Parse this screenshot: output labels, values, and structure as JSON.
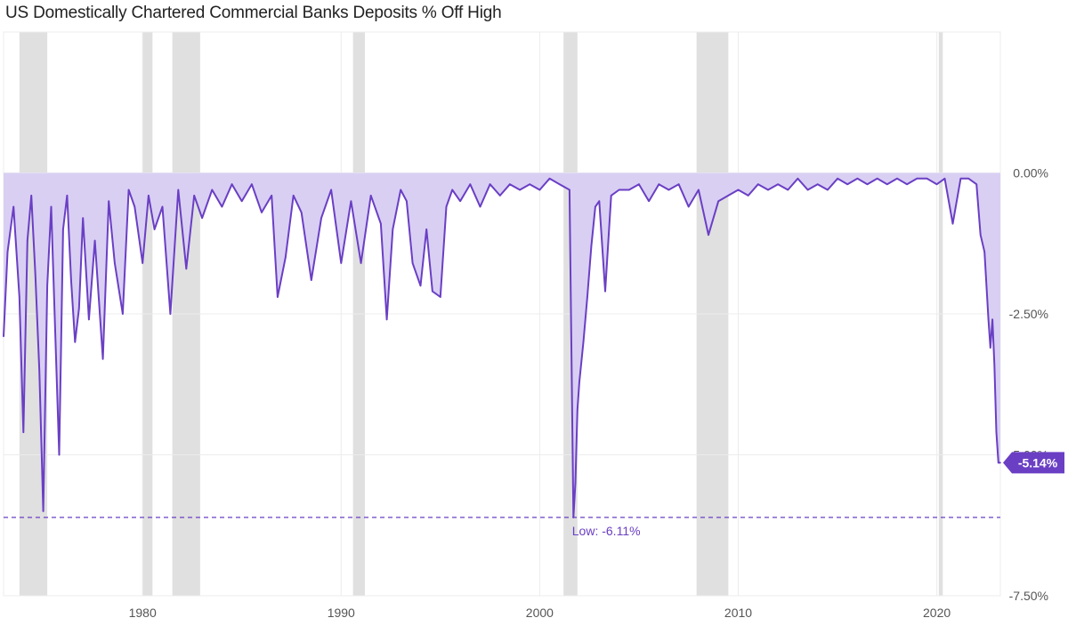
{
  "chart_data": {
    "type": "area",
    "title": "US Domestically Chartered Commercial Banks Deposits % Off High",
    "xlabel": "",
    "ylabel": "",
    "xlim": [
      1973,
      2023.2
    ],
    "ylim": [
      -7.5,
      2.5
    ],
    "y_ticks": [
      0,
      -2.5,
      -5,
      -7.5
    ],
    "y_tick_labels": [
      "0.00%",
      "-2.50%",
      "-5.00%",
      "-7.50%"
    ],
    "x_ticks": [
      1980,
      1990,
      2000,
      2010,
      2020
    ],
    "x_tick_labels": [
      "1980",
      "1990",
      "2000",
      "2010",
      "2020"
    ],
    "grid": true,
    "axis_side": "right",
    "colors": {
      "line": "#6a3fc4",
      "fill": "#d9cff3",
      "recession": "#e0e0e0",
      "grid": "#ececec",
      "reference": "#6a3fc4"
    },
    "recessions": [
      [
        1973.8,
        1975.2
      ],
      [
        1980.0,
        1980.5
      ],
      [
        1981.5,
        1982.9
      ],
      [
        1990.6,
        1991.2
      ],
      [
        2001.2,
        2001.9
      ],
      [
        2007.9,
        2009.5
      ],
      [
        2020.1,
        2020.3
      ]
    ],
    "reference_line": {
      "value": -6.11,
      "label": "Low: -6.11%",
      "label_x": 2001.9
    },
    "last_value": {
      "value": -5.14,
      "label": "-5.14%"
    },
    "series": [
      {
        "x": [
          1973.0,
          1973.2,
          1973.5,
          1973.8,
          1974.0,
          1974.2,
          1974.4,
          1974.6,
          1974.8,
          1975.0,
          1975.2,
          1975.4,
          1975.6,
          1975.8,
          1976.0,
          1976.2,
          1976.4,
          1976.6,
          1976.8,
          1977.0,
          1977.3,
          1977.6,
          1978.0,
          1978.3,
          1978.6,
          1979.0,
          1979.3,
          1979.6,
          1980.0,
          1980.3,
          1980.6,
          1981.0,
          1981.4,
          1981.8,
          1982.2,
          1982.6,
          1983.0,
          1983.5,
          1984.0,
          1984.5,
          1985.0,
          1985.5,
          1986.0,
          1986.5,
          1986.8,
          1987.2,
          1987.6,
          1988.0,
          1988.5,
          1989.0,
          1989.5,
          1990.0,
          1990.5,
          1991.0,
          1991.5,
          1992.0,
          1992.3,
          1992.6,
          1993.0,
          1993.3,
          1993.6,
          1994.0,
          1994.3,
          1994.6,
          1995.0,
          1995.3,
          1995.6,
          1996.0,
          1996.5,
          1997.0,
          1997.5,
          1998.0,
          1998.5,
          1999.0,
          1999.5,
          2000.0,
          2000.5,
          2001.0,
          2001.5,
          2001.7,
          2001.8,
          2001.9,
          2002.0,
          2002.2,
          2002.4,
          2002.6,
          2002.8,
          2003.0,
          2003.3,
          2003.6,
          2004.0,
          2004.5,
          2005.0,
          2005.5,
          2006.0,
          2006.5,
          2007.0,
          2007.5,
          2008.0,
          2008.5,
          2009.0,
          2009.5,
          2010.0,
          2010.5,
          2011.0,
          2011.5,
          2012.0,
          2012.5,
          2013.0,
          2013.5,
          2014.0,
          2014.5,
          2015.0,
          2015.5,
          2016.0,
          2016.5,
          2017.0,
          2017.5,
          2018.0,
          2018.5,
          2019.0,
          2019.5,
          2020.0,
          2020.4,
          2020.8,
          2021.2,
          2021.6,
          2022.0,
          2022.2,
          2022.4,
          2022.6,
          2022.7,
          2022.8,
          2022.9,
          2023.0,
          2023.1,
          2023.2
        ],
        "values": [
          -2.9,
          -1.4,
          -0.6,
          -2.2,
          -4.6,
          -1.2,
          -0.4,
          -1.8,
          -3.5,
          -6.0,
          -2.0,
          -0.6,
          -2.8,
          -5.0,
          -1.0,
          -0.4,
          -1.9,
          -3.0,
          -2.4,
          -0.8,
          -2.6,
          -1.2,
          -3.3,
          -0.5,
          -1.6,
          -2.5,
          -0.3,
          -0.6,
          -1.6,
          -0.4,
          -1.0,
          -0.6,
          -2.5,
          -0.3,
          -1.7,
          -0.4,
          -0.8,
          -0.3,
          -0.6,
          -0.2,
          -0.5,
          -0.2,
          -0.7,
          -0.4,
          -2.2,
          -1.5,
          -0.4,
          -0.7,
          -1.9,
          -0.8,
          -0.3,
          -1.6,
          -0.5,
          -1.6,
          -0.4,
          -0.9,
          -2.6,
          -1.0,
          -0.3,
          -0.5,
          -1.6,
          -2.0,
          -1.0,
          -2.1,
          -2.2,
          -0.6,
          -0.3,
          -0.5,
          -0.2,
          -0.6,
          -0.2,
          -0.4,
          -0.2,
          -0.3,
          -0.2,
          -0.3,
          -0.1,
          -0.2,
          -0.3,
          -6.11,
          -5.5,
          -4.2,
          -3.7,
          -3.0,
          -2.2,
          -1.3,
          -0.6,
          -0.5,
          -2.1,
          -0.4,
          -0.3,
          -0.3,
          -0.2,
          -0.5,
          -0.2,
          -0.3,
          -0.2,
          -0.6,
          -0.3,
          -1.1,
          -0.5,
          -0.4,
          -0.3,
          -0.4,
          -0.2,
          -0.3,
          -0.2,
          -0.3,
          -0.1,
          -0.3,
          -0.2,
          -0.3,
          -0.1,
          -0.2,
          -0.1,
          -0.2,
          -0.1,
          -0.2,
          -0.1,
          -0.2,
          -0.1,
          -0.1,
          -0.2,
          -0.1,
          -0.9,
          -0.1,
          -0.1,
          -0.2,
          -1.1,
          -1.4,
          -2.6,
          -3.1,
          -2.6,
          -3.4,
          -4.6,
          -5.14,
          -5.14
        ]
      }
    ]
  }
}
